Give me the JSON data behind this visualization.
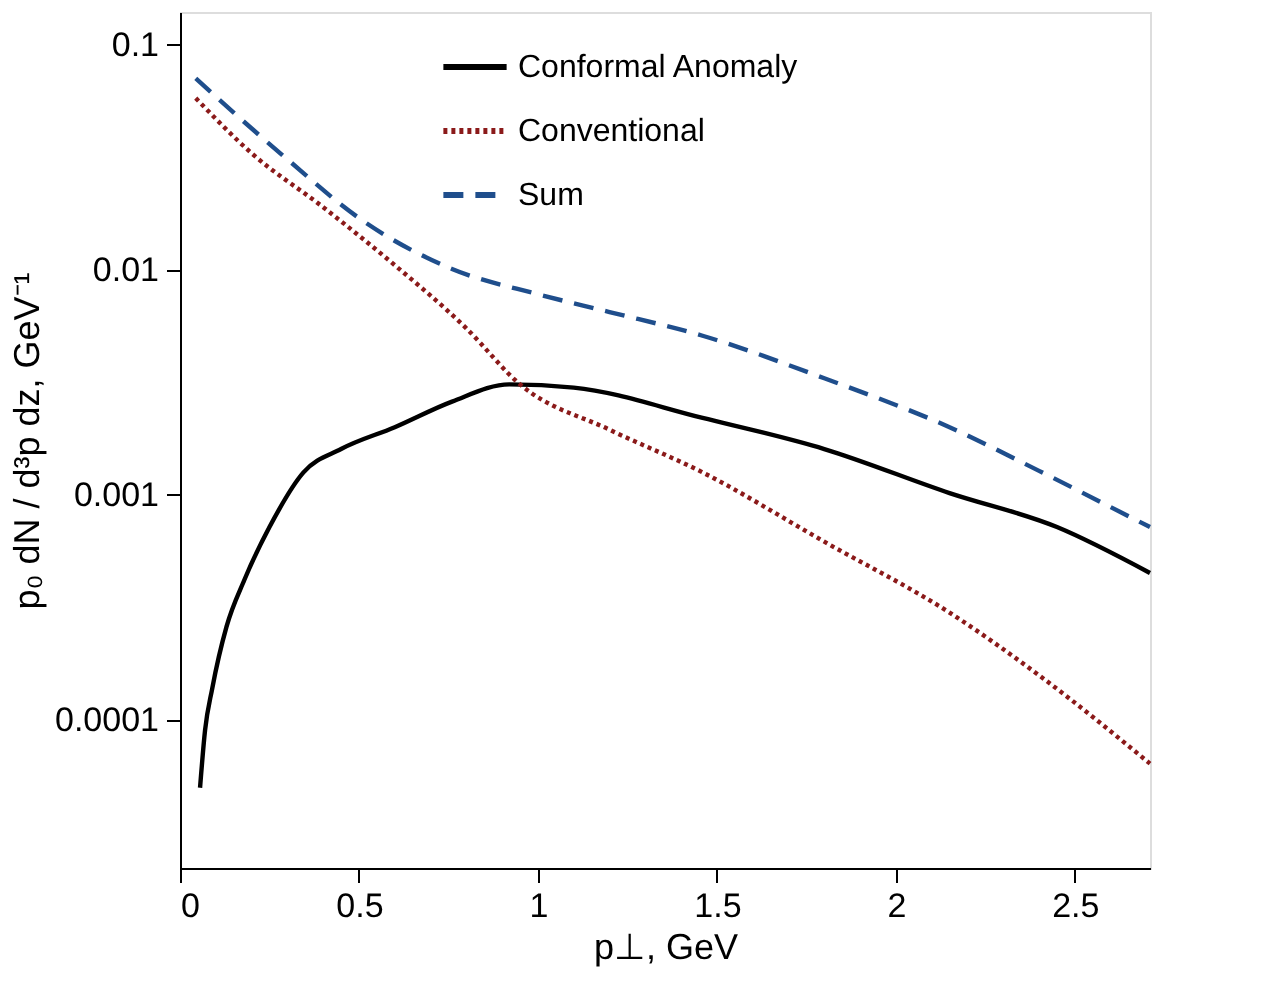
{
  "chart_data": {
    "type": "line",
    "xlabel": "p⊥, GeV",
    "ylabel": "p₀ dN / d³p dz, GeV⁻¹",
    "log": "y",
    "xlim": [
      0,
      2.71
    ],
    "ylim": [
      2.2e-05,
      0.14
    ],
    "xticks": [
      0,
      0.5,
      1,
      1.5,
      2,
      2.5
    ],
    "yticks": [
      0.0001,
      0.001,
      0.01,
      0.1
    ],
    "grid": false,
    "legend": "top",
    "marker": "none",
    "series": [
      {
        "name": "Conformal Anomaly",
        "color": "#000000",
        "line_style": "solid",
        "x": [
          0.056,
          0.07,
          0.09,
          0.13,
          0.18,
          0.25,
          0.345,
          0.45,
          0.6,
          0.76,
          0.92,
          1.1,
          1.46,
          1.8,
          2.15,
          2.45,
          2.71
        ],
        "values": [
          5e-05,
          9e-05,
          0.000138,
          0.00026,
          0.00042,
          0.00072,
          0.00126,
          0.0016,
          0.002,
          0.0026,
          0.0031,
          0.003,
          0.0022,
          0.0016,
          0.00102,
          0.00072,
          0.00045
        ]
      },
      {
        "name": "Conventional",
        "color": "#8b1a1a",
        "line_style": "dotted",
        "x": [
          0.044,
          0.2,
          0.4,
          0.6,
          0.8,
          0.95,
          1.2,
          1.46,
          1.8,
          2.15,
          2.4,
          2.71
        ],
        "values": [
          0.058,
          0.033,
          0.019,
          0.0105,
          0.0055,
          0.0031,
          0.00195,
          0.00126,
          0.00062,
          0.0003,
          0.000158,
          6.4e-05
        ]
      },
      {
        "name": "Sum",
        "color": "#1f4e8c",
        "line_style": "dashed",
        "x": [
          0.044,
          0.15,
          0.3,
          0.5,
          0.76,
          1.0,
          1.2,
          1.46,
          1.8,
          2.15,
          2.4,
          2.66,
          2.71
        ],
        "values": [
          0.071,
          0.05,
          0.031,
          0.017,
          0.0101,
          0.0078,
          0.0065,
          0.0051,
          0.0033,
          0.002,
          0.00128,
          0.00079,
          0.00072
        ]
      }
    ]
  }
}
